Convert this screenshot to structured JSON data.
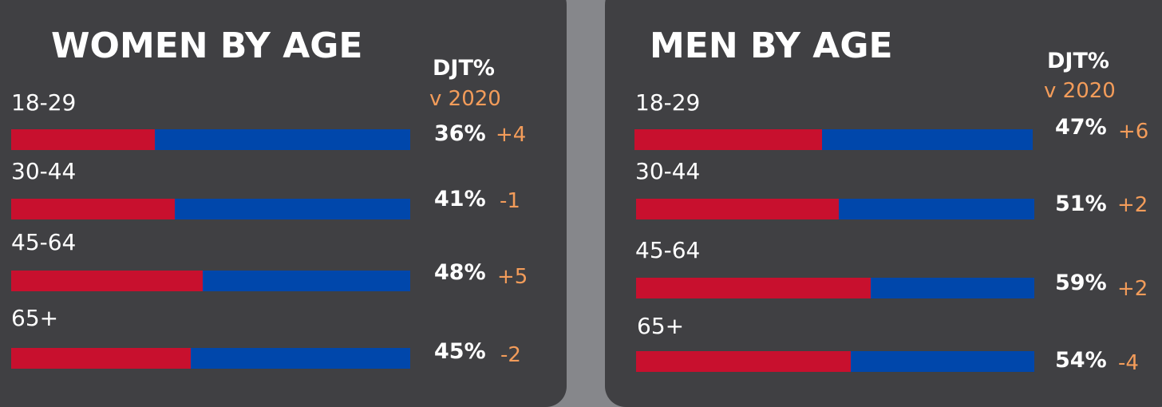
{
  "colors": {
    "djt": "#c8102e",
    "other": "#0047ab",
    "change": "#f39c5a",
    "panel": "#404043",
    "background": "#86878b"
  },
  "chart_data": [
    {
      "type": "bar",
      "title": "WOMEN BY AGE",
      "header_value": "DJT%",
      "header_change": "v 2020",
      "categories": [
        "18-29",
        "30-44",
        "45-64",
        "65+"
      ],
      "values": [
        36,
        41,
        48,
        45
      ],
      "value_labels": [
        "36%",
        "41%",
        "48%",
        "45%"
      ],
      "changes": [
        "+4",
        "-1",
        "+5",
        "-2"
      ],
      "ylim": [
        0,
        100
      ]
    },
    {
      "type": "bar",
      "title": "MEN BY AGE",
      "header_value": "DJT%",
      "header_change": "v 2020",
      "categories": [
        "18-29",
        "30-44",
        "45-64",
        "65+"
      ],
      "values": [
        47,
        51,
        59,
        54
      ],
      "value_labels": [
        "47%",
        "51%",
        "59%",
        "54%"
      ],
      "changes": [
        "+6",
        "+2",
        "+2",
        "-4"
      ],
      "ylim": [
        0,
        100
      ]
    }
  ]
}
